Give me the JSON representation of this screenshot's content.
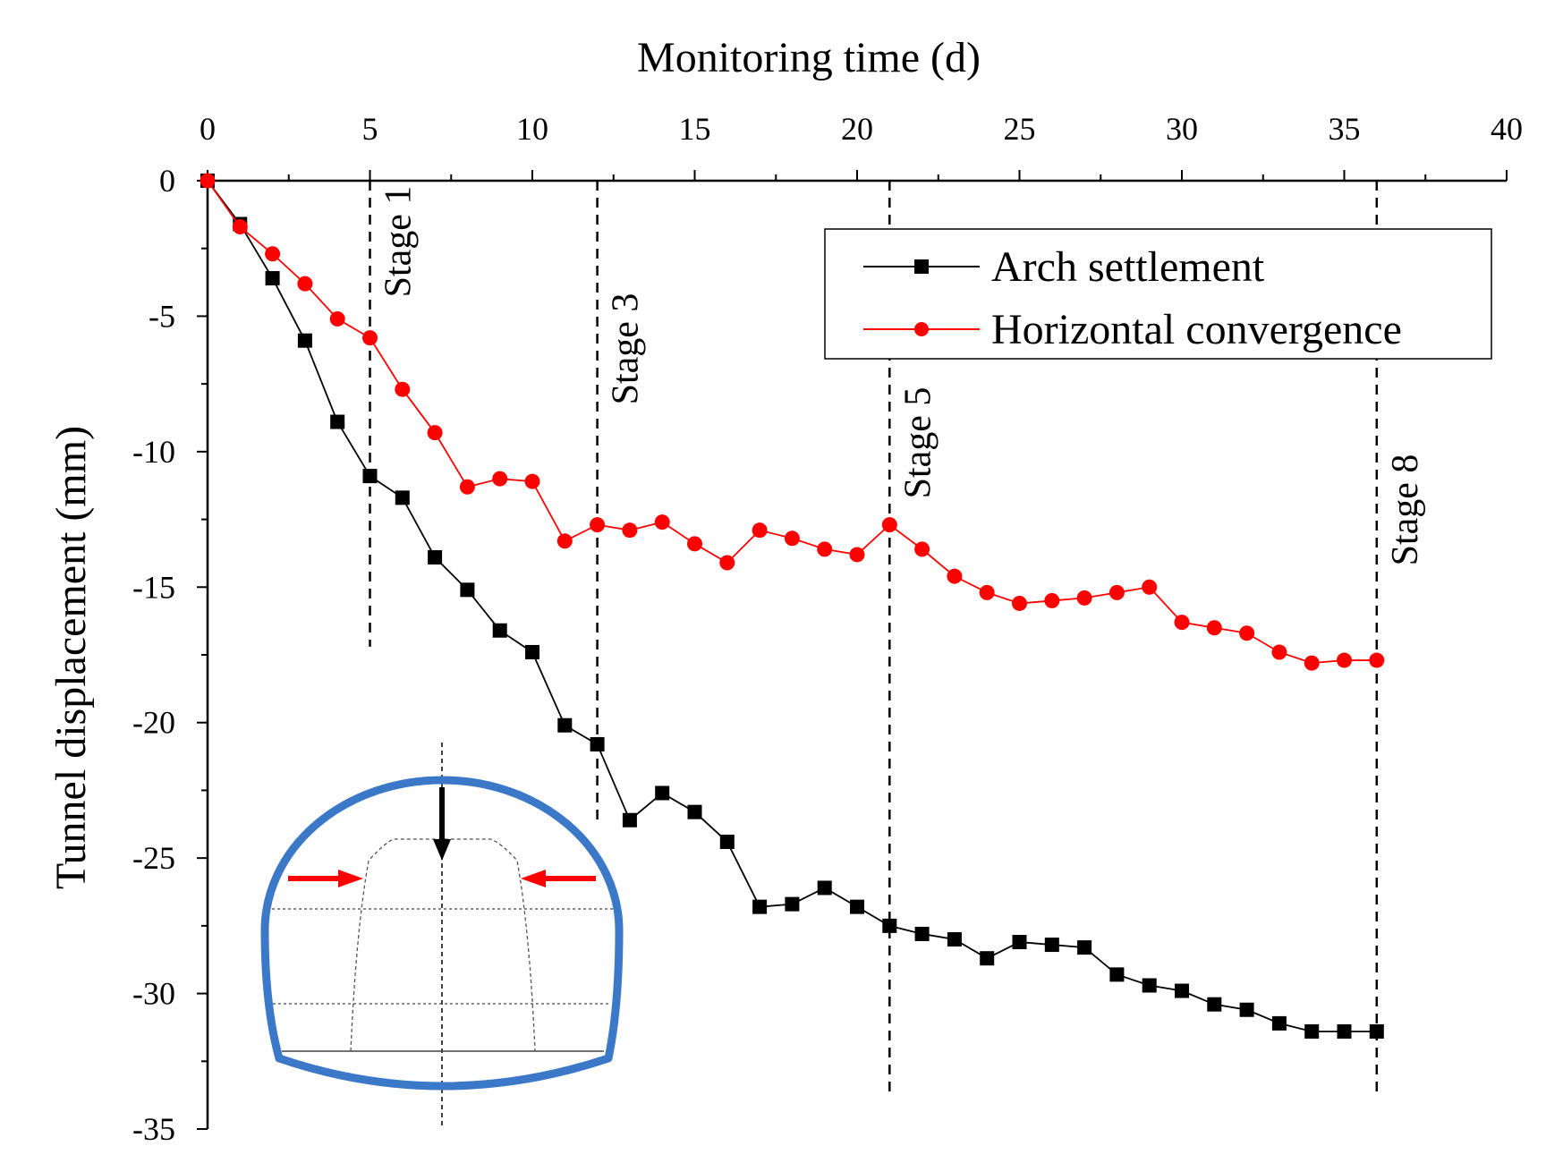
{
  "chart_data": {
    "type": "line",
    "xlabel": "Monitoring time (d)",
    "ylabel": "Tunnel displacement (mm)",
    "xaxis_position": "top",
    "xlim": [
      0,
      40
    ],
    "ylim": [
      -35,
      0
    ],
    "xticks": [
      0,
      5,
      10,
      15,
      20,
      25,
      30,
      35,
      40
    ],
    "yticks": [
      0,
      -5,
      -10,
      -15,
      -20,
      -25,
      -30,
      -35
    ],
    "grid": false,
    "legend_position": "top-right",
    "series": [
      {
        "name": "Arch settlement",
        "color": "#000000",
        "marker": "square",
        "x": [
          0,
          1,
          2,
          3,
          4,
          5,
          6,
          7,
          8,
          9,
          10,
          11,
          12,
          13,
          14,
          15,
          16,
          17,
          18,
          19,
          20,
          21,
          22,
          23,
          24,
          25,
          26,
          27,
          28,
          29,
          30,
          31,
          32,
          33,
          34,
          35,
          36
        ],
        "y": [
          0,
          -1.6,
          -3.6,
          -5.9,
          -8.9,
          -10.9,
          -11.7,
          -13.9,
          -15.1,
          -16.6,
          -17.4,
          -20.1,
          -20.8,
          -23.6,
          -22.6,
          -23.3,
          -24.4,
          -26.8,
          -26.7,
          -26.1,
          -26.8,
          -27.5,
          -27.8,
          -28.0,
          -28.7,
          -28.1,
          -28.2,
          -28.3,
          -29.3,
          -29.7,
          -29.9,
          -30.4,
          -30.6,
          -31.1,
          -31.4,
          -31.4,
          -31.4
        ]
      },
      {
        "name": "Horizontal convergence",
        "color": "#ff0000",
        "marker": "circle",
        "x": [
          0,
          1,
          2,
          3,
          4,
          5,
          6,
          7,
          8,
          9,
          10,
          11,
          12,
          13,
          14,
          15,
          16,
          17,
          18,
          19,
          20,
          21,
          22,
          23,
          24,
          25,
          26,
          27,
          28,
          29,
          30,
          31,
          32,
          33,
          34,
          35,
          36
        ],
        "y": [
          0,
          -1.7,
          -2.7,
          -3.8,
          -5.1,
          -5.8,
          -7.7,
          -9.3,
          -11.3,
          -11.0,
          -11.1,
          -13.3,
          -12.7,
          -12.9,
          -12.6,
          -13.4,
          -14.1,
          -12.9,
          -13.2,
          -13.6,
          -13.8,
          -12.7,
          -13.6,
          -14.6,
          -15.2,
          -15.6,
          -15.5,
          -15.4,
          -15.2,
          -15.0,
          -16.3,
          -16.5,
          -16.7,
          -17.4,
          -17.8,
          -17.7,
          -17.7
        ]
      }
    ],
    "stages": [
      {
        "label": "Stage 1",
        "x": 5,
        "y_end": -17.2
      },
      {
        "label": "Stage 3",
        "x": 12,
        "y_end": -23.8
      },
      {
        "label": "Stage 5",
        "x": 21,
        "y_end": -33.8
      },
      {
        "label": "Stage 8",
        "x": 36,
        "y_end": -33.8
      }
    ]
  },
  "inset": {
    "name": "tunnel-cross-section-diagram",
    "lining_color": "#3c78c8",
    "arrow_vertical_color": "#000000",
    "arrow_horizontal_color": "#ff0000"
  }
}
